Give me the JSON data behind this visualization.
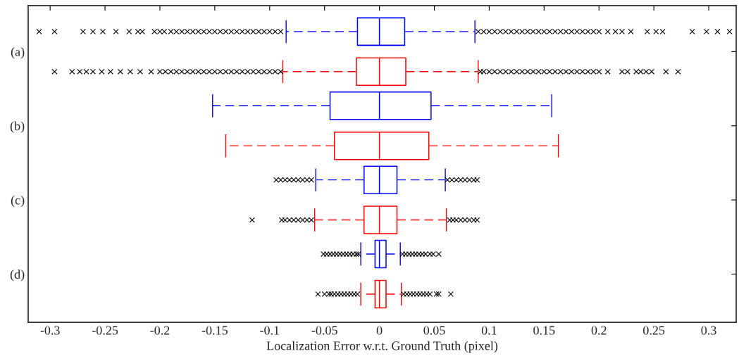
{
  "chart_data": {
    "type": "box",
    "orientation": "horizontal",
    "xlabel": "Localization Error w.r.t. Ground Truth (pixel)",
    "categories": [
      "(a)",
      "(b)",
      "(c)",
      "(d)"
    ],
    "xlim": [
      -0.32,
      0.325
    ],
    "xticks": [
      -0.3,
      -0.25,
      -0.2,
      -0.15,
      -0.1,
      -0.05,
      0,
      0.05,
      0.1,
      0.15,
      0.2,
      0.25,
      0.3
    ],
    "grid": false,
    "legend": false,
    "marker": "cross",
    "line_style": "dashed",
    "series": [
      {
        "color": "#0000ff",
        "boxes": [
          {
            "low": -0.085,
            "q1": -0.02,
            "median": 0,
            "q3": 0.023,
            "high": 0.087,
            "outliers": [
              -0.31,
              -0.296,
              -0.27,
              -0.261,
              -0.252,
              -0.24,
              -0.228,
              -0.22,
              -0.216,
              -0.205,
              -0.2,
              -0.196,
              -0.19,
              -0.185,
              -0.18,
              -0.175,
              -0.17,
              -0.165,
              -0.16,
              -0.155,
              -0.15,
              -0.145,
              -0.14,
              -0.135,
              -0.13,
              -0.125,
              -0.12,
              -0.115,
              -0.11,
              -0.105,
              -0.1,
              -0.095,
              -0.09,
              0.09,
              0.095,
              0.1,
              0.105,
              0.11,
              0.115,
              0.12,
              0.125,
              0.13,
              0.135,
              0.14,
              0.145,
              0.15,
              0.155,
              0.16,
              0.165,
              0.17,
              0.175,
              0.18,
              0.185,
              0.19,
              0.195,
              0.2,
              0.208,
              0.215,
              0.221,
              0.229,
              0.244,
              0.252,
              0.258,
              0.285,
              0.298,
              0.308,
              0.319
            ]
          },
          {
            "low": -0.152,
            "q1": -0.045,
            "median": 0,
            "q3": 0.047,
            "high": 0.157
          },
          {
            "low": -0.058,
            "q1": -0.014,
            "median": 0,
            "q3": 0.016,
            "high": 0.06,
            "outliers": [
              -0.094,
              -0.09,
              -0.086,
              -0.082,
              -0.078,
              -0.074,
              -0.07,
              -0.066,
              -0.062,
              0.062,
              0.066,
              0.07,
              0.074,
              0.078,
              0.082,
              0.086,
              0.089
            ]
          },
          {
            "low": -0.017,
            "q1": -0.004,
            "median": 0,
            "q3": 0.006,
            "high": 0.019,
            "outliers": [
              -0.051,
              -0.048,
              -0.045,
              -0.042,
              -0.039,
              -0.036,
              -0.033,
              -0.03,
              -0.027,
              -0.024,
              -0.021,
              -0.019,
              0.021,
              0.024,
              0.027,
              0.03,
              0.033,
              0.036,
              0.039,
              0.042,
              0.046,
              0.049,
              0.054
            ]
          }
        ]
      },
      {
        "color": "#ff0000",
        "boxes": [
          {
            "low": -0.088,
            "q1": -0.021,
            "median": 0,
            "q3": 0.024,
            "high": 0.09,
            "outliers": [
              -0.296,
              -0.28,
              -0.273,
              -0.267,
              -0.261,
              -0.253,
              -0.245,
              -0.236,
              -0.227,
              -0.218,
              -0.208,
              -0.2,
              -0.195,
              -0.19,
              -0.185,
              -0.18,
              -0.175,
              -0.17,
              -0.165,
              -0.16,
              -0.155,
              -0.15,
              -0.145,
              -0.14,
              -0.135,
              -0.13,
              -0.125,
              -0.12,
              -0.115,
              -0.11,
              -0.105,
              -0.1,
              -0.095,
              -0.09,
              0.092,
              0.095,
              0.1,
              0.105,
              0.11,
              0.115,
              0.12,
              0.125,
              0.13,
              0.135,
              0.14,
              0.145,
              0.15,
              0.155,
              0.16,
              0.165,
              0.17,
              0.175,
              0.18,
              0.185,
              0.19,
              0.195,
              0.2,
              0.208,
              0.221,
              0.226,
              0.234,
              0.238,
              0.243,
              0.248,
              0.261,
              0.272
            ]
          },
          {
            "low": -0.14,
            "q1": -0.041,
            "median": 0,
            "q3": 0.045,
            "high": 0.163
          },
          {
            "low": -0.059,
            "q1": -0.014,
            "median": 0,
            "q3": 0.016,
            "high": 0.061,
            "outliers": [
              -0.116,
              -0.089,
              -0.086,
              -0.082,
              -0.078,
              -0.074,
              -0.07,
              -0.066,
              -0.062,
              0.064,
              0.067,
              0.07,
              0.074,
              0.078,
              0.082,
              0.086,
              0.089
            ]
          },
          {
            "low": -0.017,
            "q1": -0.004,
            "median": 0,
            "q3": 0.006,
            "high": 0.02,
            "outliers": [
              -0.056,
              -0.05,
              -0.046,
              -0.044,
              -0.041,
              -0.038,
              -0.035,
              -0.032,
              -0.029,
              -0.026,
              -0.023,
              -0.02,
              0.022,
              0.025,
              0.028,
              0.031,
              0.034,
              0.037,
              0.04,
              0.043,
              0.046,
              0.052,
              0.054,
              0.065
            ]
          }
        ]
      }
    ]
  }
}
